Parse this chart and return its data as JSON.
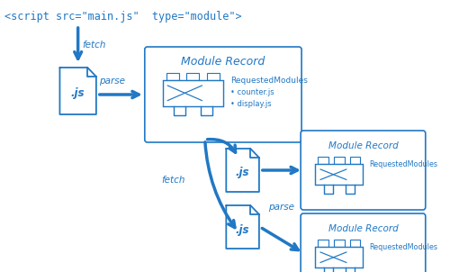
{
  "bg_color": "#ffffff",
  "main_color": "#2178c4",
  "title_text": "<script src=\"main.js\"  type=\"module\">",
  "title_fontsize": 8.5,
  "title_font": "monospace",
  "label_fetch1": "fetch",
  "label_parse1": "parse",
  "label_fetch2": "fetch",
  "label_parse2": "parse",
  "mr_title1": "Module Record",
  "mr_title2": "Module Record",
  "mr_title3": "Module Record",
  "req_mod1": "RequestedModules",
  "counter_js": "• counter.js",
  "display_js": "• display.js",
  "req_mod2": "RequestedModules",
  "req_mod3": "RequestedModules",
  "figw": 5.0,
  "figh": 3.02,
  "dpi": 100
}
